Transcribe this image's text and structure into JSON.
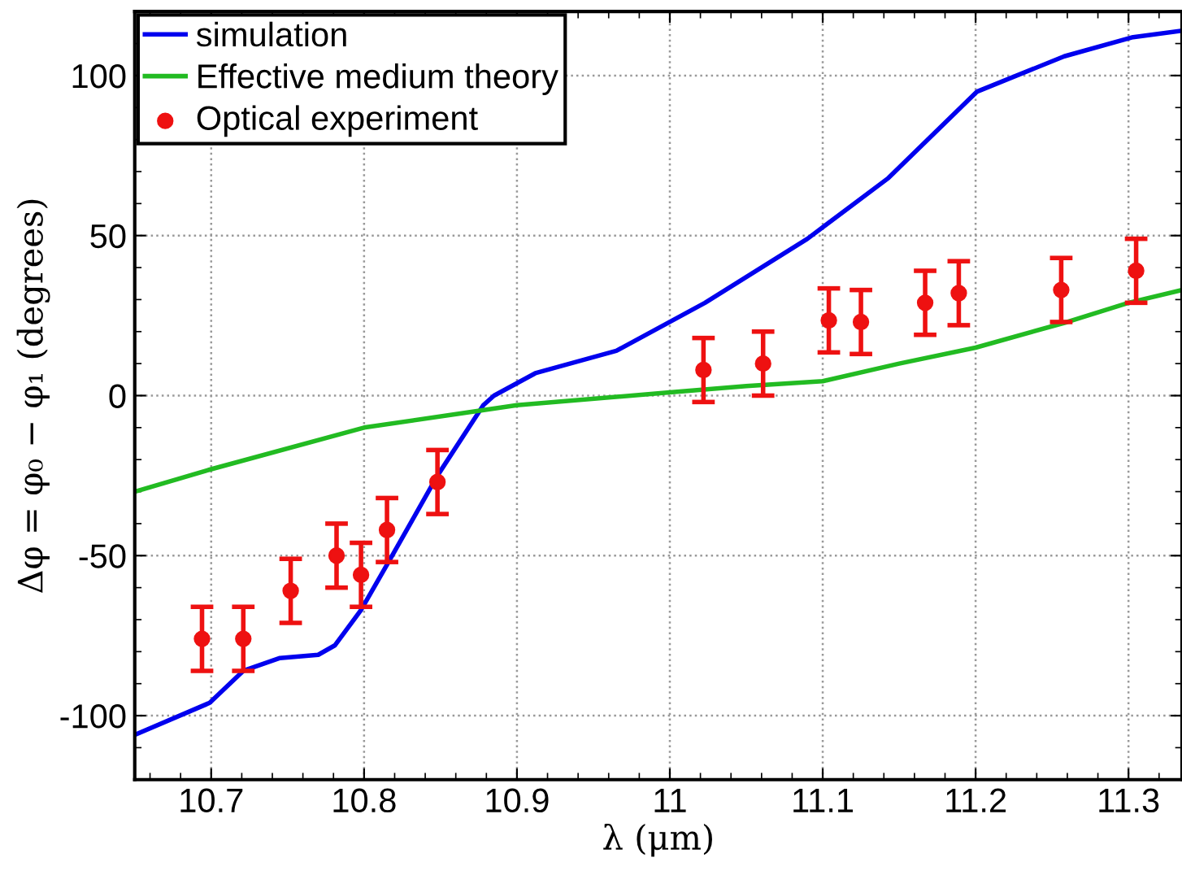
{
  "chart_data": {
    "type": "line",
    "xlabel": "λ (μm)",
    "ylabel": "Δφ = φ₀ − φ₁ (degrees)",
    "xlim": [
      10.65,
      11.335
    ],
    "ylim": [
      -120,
      120
    ],
    "xticks": [
      10.7,
      10.8,
      10.9,
      11,
      11.1,
      11.2,
      11.3
    ],
    "yticks": [
      -100,
      -50,
      0,
      50,
      100
    ],
    "grid": true,
    "legend": "top left",
    "line_style": "solid",
    "series": [
      {
        "name": "simulation",
        "color": "#0000ee",
        "x": [
          10.65,
          10.699,
          10.721,
          10.745,
          10.77,
          10.781,
          10.798,
          10.816,
          10.848,
          10.878,
          10.885,
          10.912,
          10.965,
          11.023,
          11.09,
          11.143,
          11.201,
          11.258,
          11.303,
          11.335
        ],
        "values": [
          -106,
          -96,
          -86,
          -82,
          -81,
          -78,
          -67,
          -52,
          -25,
          -3,
          0,
          7,
          14,
          29,
          49,
          68,
          95,
          106,
          112,
          114
        ]
      },
      {
        "name": "Effective medium theory",
        "color": "#22bb22",
        "x": [
          10.65,
          10.7,
          10.8,
          10.9,
          11.0,
          11.05,
          11.1,
          11.15,
          11.2,
          11.26,
          11.3,
          11.335
        ],
        "values": [
          -30,
          -23,
          -10,
          -3,
          1,
          3,
          4.5,
          10,
          15,
          23,
          29,
          33
        ]
      },
      {
        "name": "Optical experiment",
        "type": "scatter",
        "color": "#ee1111",
        "marker": "circle",
        "x": [
          10.694,
          10.721,
          10.752,
          10.782,
          10.798,
          10.815,
          10.848,
          11.022,
          11.061,
          11.104,
          11.125,
          11.167,
          11.189,
          11.256,
          11.305
        ],
        "values": [
          -76,
          -76,
          -61,
          -50,
          -56,
          -42,
          -27,
          8,
          10,
          23.5,
          23,
          29,
          32,
          33,
          39
        ],
        "errors": [
          10,
          10,
          10,
          10,
          10,
          10,
          10,
          10,
          10,
          10,
          10,
          10,
          10,
          10,
          10
        ]
      }
    ]
  }
}
